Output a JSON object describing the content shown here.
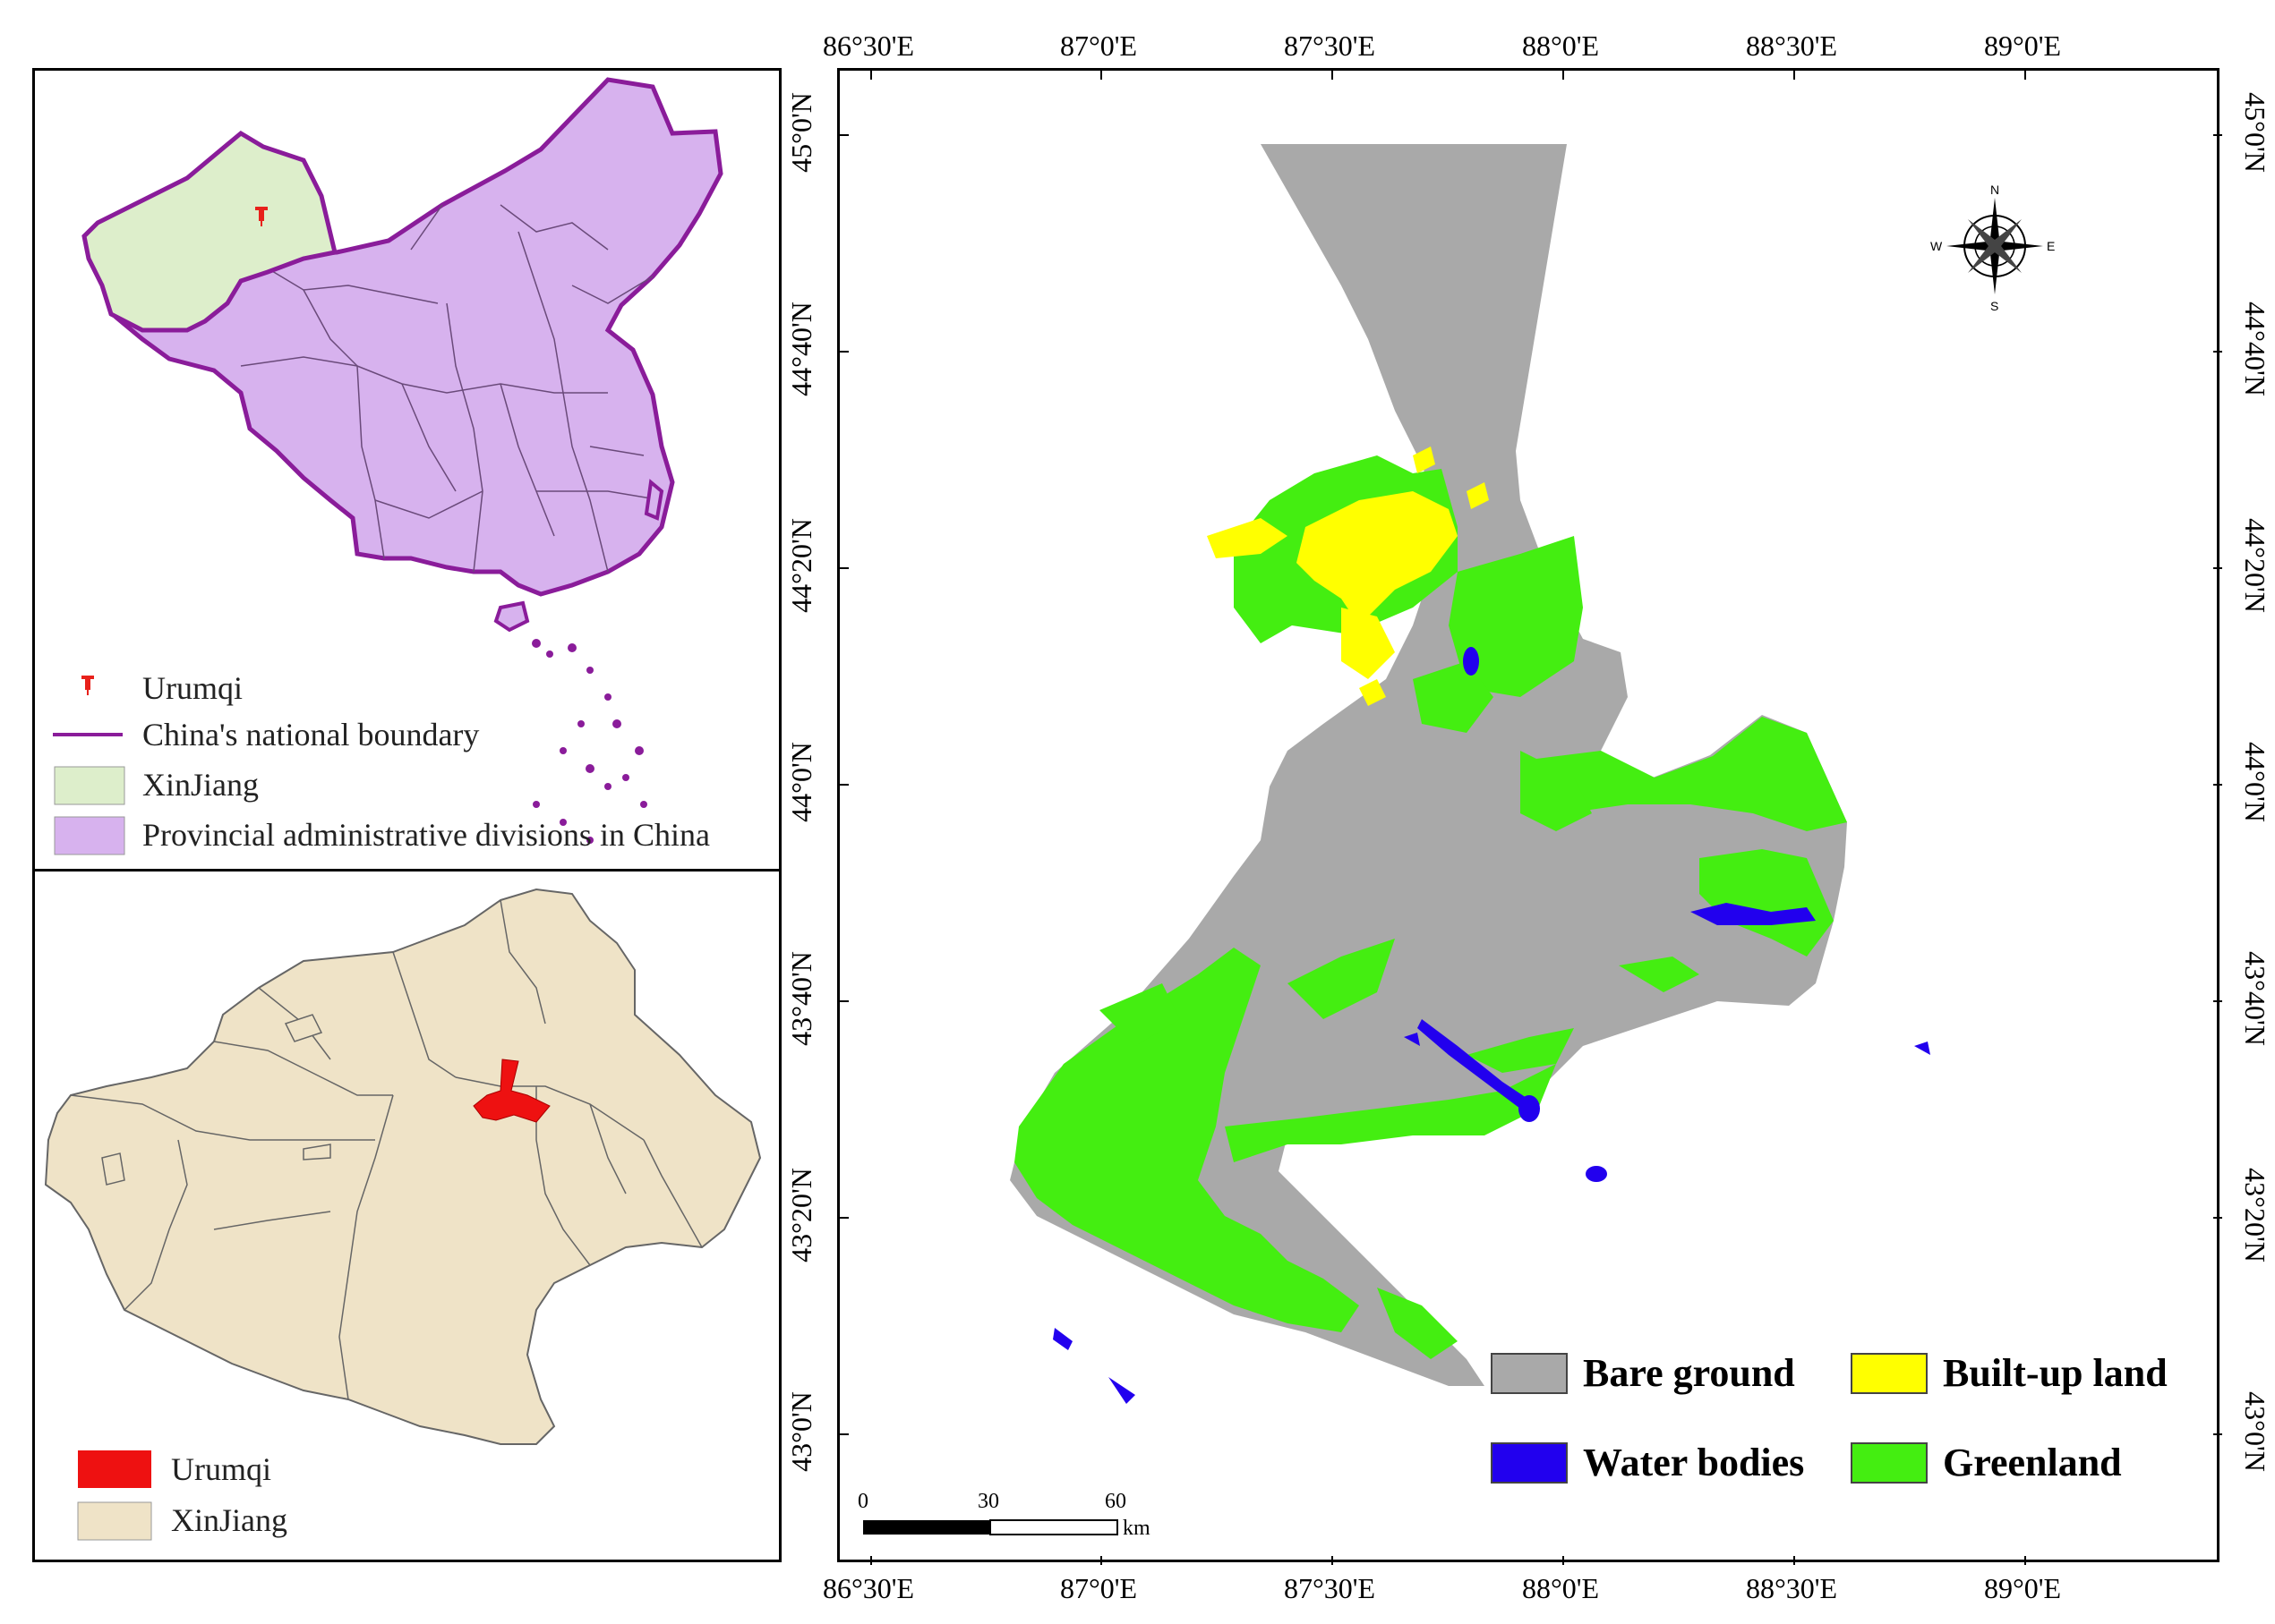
{
  "china_map": {
    "legend": [
      {
        "label": "Urumqi",
        "symbol": "pin-icon",
        "color": "#e8211b"
      },
      {
        "label": "China's national boundary",
        "symbol": "line",
        "color": "#8a1c9a"
      },
      {
        "label": "XinJiang",
        "symbol": "box",
        "color": "#ddeecb"
      },
      {
        "label": "Provincial administrative divisions in China",
        "symbol": "box",
        "color": "#d7b2ee"
      }
    ]
  },
  "xinjiang_map": {
    "legend": [
      {
        "label": "Urumqi",
        "color": "#ee1111"
      },
      {
        "label": "XinJiang",
        "color": "#efe3c7"
      }
    ]
  },
  "main_map": {
    "x_ticks": [
      "86°30'E",
      "87°0'E",
      "87°30'E",
      "88°0'E",
      "88°30'E",
      "89°0'E"
    ],
    "y_ticks": [
      "45°0'N",
      "44°40'N",
      "44°20'N",
      "44°0'N",
      "43°40'N",
      "43°20'N",
      "43°0'N"
    ],
    "legend": [
      {
        "label": "Bare ground",
        "color": "#a9a9a9"
      },
      {
        "label": "Built-up land",
        "color": "#ffff00"
      },
      {
        "label": "Water bodies",
        "color": "#2200ee"
      },
      {
        "label": "Greenland",
        "color": "#44ee11"
      }
    ],
    "scale_bar": {
      "labels": [
        "0",
        "30",
        "60"
      ],
      "unit": "km"
    },
    "compass": {
      "n": "N",
      "s": "S",
      "e": "E",
      "w": "W"
    }
  }
}
